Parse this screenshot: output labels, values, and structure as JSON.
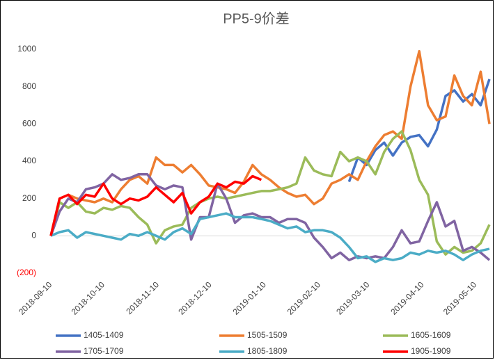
{
  "chart_data": {
    "type": "line",
    "title": "PP5-9价差",
    "x": [
      "2018-09-10",
      "2018-09-15",
      "2018-09-20",
      "2018-09-25",
      "2018-09-30",
      "2018-10-05",
      "2018-10-10",
      "2018-10-15",
      "2018-10-20",
      "2018-10-25",
      "2018-10-30",
      "2018-11-04",
      "2018-11-09",
      "2018-11-14",
      "2018-11-19",
      "2018-11-24",
      "2018-11-29",
      "2018-12-04",
      "2018-12-09",
      "2018-12-14",
      "2018-12-19",
      "2018-12-24",
      "2018-12-29",
      "2019-01-03",
      "2019-01-08",
      "2019-01-13",
      "2019-01-18",
      "2019-01-23",
      "2019-01-28",
      "2019-02-02",
      "2019-02-07",
      "2019-02-12",
      "2019-02-17",
      "2019-02-22",
      "2019-02-27",
      "2019-03-04",
      "2019-03-09",
      "2019-03-14",
      "2019-03-19",
      "2019-03-24",
      "2019-03-29",
      "2019-04-03",
      "2019-04-08",
      "2019-04-13",
      "2019-04-18",
      "2019-04-23",
      "2019-04-28",
      "2019-05-03",
      "2019-05-08",
      "2019-05-13",
      "2019-05-18"
    ],
    "xlim": [
      "2018-09-10",
      "2019-05-18"
    ],
    "xticks": [
      "2018-09-10",
      "2018-10-10",
      "2018-11-10",
      "2018-12-10",
      "2019-01-10",
      "2019-02-10",
      "2019-03-10",
      "2019-04-10",
      "2019-05-10"
    ],
    "ylim": [
      -200,
      1000
    ],
    "yticks": [
      {
        "value": -200,
        "label": "(200)"
      },
      0,
      200,
      400,
      600,
      800,
      1000
    ],
    "negative_tick_color": "#ff0000",
    "series": [
      {
        "name": "1405-1409",
        "color": "#4472c4",
        "values": [
          null,
          null,
          null,
          null,
          null,
          null,
          null,
          null,
          null,
          null,
          null,
          null,
          null,
          null,
          null,
          null,
          null,
          null,
          null,
          null,
          null,
          null,
          null,
          null,
          null,
          null,
          null,
          null,
          null,
          null,
          null,
          null,
          null,
          null,
          290,
          420,
          380,
          460,
          500,
          430,
          500,
          530,
          540,
          480,
          570,
          750,
          780,
          720,
          760,
          700,
          840
        ]
      },
      {
        "name": "1505-1509",
        "color": "#ed7d31",
        "values": [
          0,
          200,
          220,
          200,
          190,
          180,
          200,
          180,
          250,
          300,
          320,
          280,
          420,
          380,
          380,
          340,
          380,
          330,
          270,
          260,
          250,
          230,
          290,
          380,
          330,
          300,
          260,
          230,
          210,
          220,
          170,
          200,
          280,
          300,
          330,
          300,
          400,
          480,
          540,
          560,
          520,
          800,
          990,
          700,
          620,
          640,
          860,
          750,
          700,
          880,
          600
        ]
      },
      {
        "name": "1605-1609",
        "color": "#9bbb59",
        "values": [
          0,
          180,
          150,
          180,
          130,
          120,
          150,
          140,
          160,
          150,
          100,
          60,
          -40,
          30,
          50,
          60,
          150,
          180,
          200,
          210,
          200,
          210,
          220,
          230,
          240,
          240,
          250,
          260,
          280,
          420,
          350,
          330,
          320,
          450,
          400,
          420,
          400,
          330,
          450,
          520,
          560,
          460,
          300,
          220,
          -30,
          -100,
          -60,
          -90,
          -80,
          -40,
          60
        ]
      },
      {
        "name": "1705-1709",
        "color": "#8064a2",
        "values": [
          0,
          130,
          200,
          180,
          250,
          260,
          280,
          330,
          300,
          310,
          330,
          330,
          270,
          250,
          270,
          260,
          -20,
          100,
          100,
          280,
          200,
          70,
          110,
          120,
          100,
          100,
          70,
          90,
          90,
          70,
          -10,
          -60,
          -120,
          -90,
          -130,
          -110,
          -120,
          -110,
          -120,
          -60,
          30,
          -40,
          -30,
          80,
          180,
          50,
          80,
          -80,
          -60,
          -90,
          -130
        ]
      },
      {
        "name": "1805-1809",
        "color": "#4bacc6",
        "values": [
          0,
          20,
          30,
          -10,
          20,
          10,
          0,
          -10,
          -20,
          10,
          0,
          20,
          0,
          -20,
          20,
          40,
          10,
          90,
          100,
          110,
          120,
          100,
          100,
          100,
          90,
          80,
          60,
          40,
          50,
          20,
          30,
          30,
          20,
          -10,
          -60,
          -120,
          -110,
          -140,
          -120,
          -130,
          -120,
          -90,
          -100,
          -80,
          -90,
          -80,
          -100,
          -130,
          -100,
          -80,
          -70
        ]
      },
      {
        "name": "1905-1909",
        "color": "#ff0000",
        "values": [
          0,
          200,
          220,
          170,
          220,
          210,
          280,
          200,
          170,
          200,
          190,
          210,
          260,
          220,
          180,
          230,
          120,
          180,
          210,
          280,
          260,
          290,
          280,
          320,
          300,
          null,
          null,
          null,
          null,
          null,
          null,
          null,
          null,
          null,
          null,
          null,
          null,
          null,
          null,
          null,
          null,
          null,
          null,
          null,
          null,
          null,
          null,
          null,
          null,
          null,
          null
        ]
      }
    ]
  }
}
